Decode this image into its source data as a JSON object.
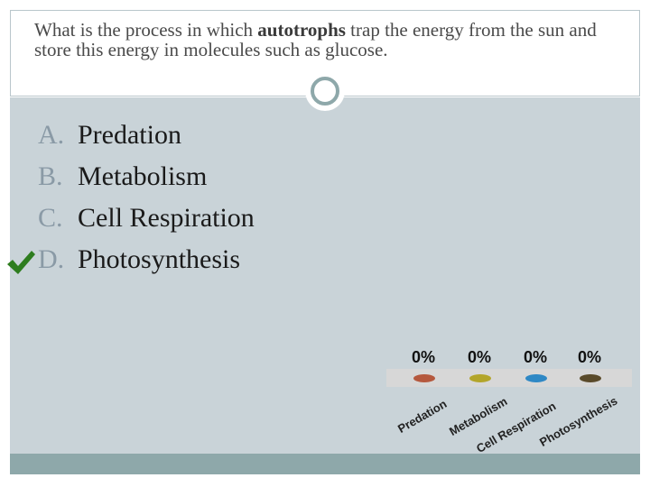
{
  "question": {
    "pre": "What is the process in which ",
    "bold": "autotrophs",
    "post": " trap the energy from the sun and store this energy in molecules such as glucose."
  },
  "answers": [
    {
      "letter": "A.",
      "text": "Predation",
      "correct": false
    },
    {
      "letter": "B.",
      "text": "Metabolism",
      "correct": false
    },
    {
      "letter": "C.",
      "text": "Cell Respiration",
      "correct": false
    },
    {
      "letter": "D.",
      "text": "Photosynthesis",
      "correct": true
    }
  ],
  "icons": {
    "check": "checkmark-icon"
  },
  "colors": {
    "check": "#2e7d1f",
    "content_bg": "#c9d3d8",
    "accent": "#8ea8aa"
  },
  "chart_data": {
    "type": "bar",
    "categories": [
      "Predation",
      "Metabolism",
      "Cell Respiration",
      "Photosynthesis"
    ],
    "values": [
      0,
      0,
      0,
      0
    ],
    "value_labels": [
      "0%",
      "0%",
      "0%",
      "0%"
    ],
    "colors": [
      "#b5583d",
      "#b3a52a",
      "#2f88c5",
      "#5a4a2a"
    ],
    "title": "",
    "xlabel": "",
    "ylabel": "",
    "ylim": [
      0,
      100
    ]
  }
}
